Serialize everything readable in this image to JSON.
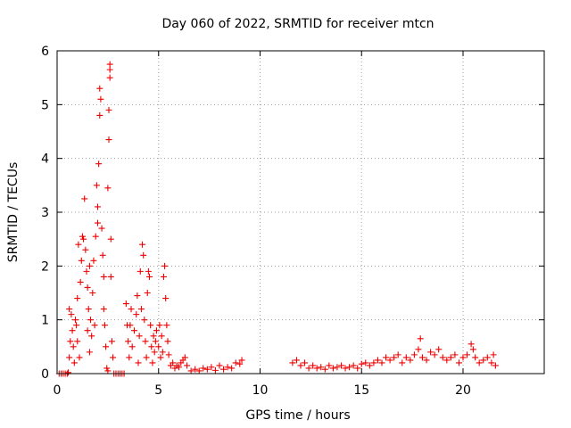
{
  "chart_data": {
    "type": "scatter",
    "title": "Day 060 of 2022, SRMTID for receiver mtcn",
    "xlabel": "GPS time / hours",
    "ylabel": "SRMTID / TECUs",
    "xlim": [
      0,
      24
    ],
    "ylim": [
      0,
      6
    ],
    "xticks": [
      0,
      5,
      10,
      15,
      20
    ],
    "yticks": [
      0,
      1,
      2,
      3,
      4,
      5,
      6
    ],
    "xtick_labels": [
      "0",
      "5",
      "10",
      "15",
      "20"
    ],
    "ytick_labels": [
      "0",
      "1",
      "2",
      "3",
      "4",
      "5",
      "6"
    ],
    "grid": true,
    "marker": "+",
    "color": "#ee0000",
    "series": [
      {
        "name": "SRMTID",
        "points": [
          [
            0.1,
            0.0
          ],
          [
            0.2,
            0.0
          ],
          [
            0.3,
            0.0
          ],
          [
            0.4,
            0.0
          ],
          [
            0.5,
            0.0
          ],
          [
            0.55,
            0.02
          ],
          [
            0.6,
            0.3
          ],
          [
            0.65,
            0.6
          ],
          [
            0.6,
            1.2
          ],
          [
            0.7,
            1.1
          ],
          [
            0.75,
            0.8
          ],
          [
            0.8,
            0.5
          ],
          [
            0.85,
            0.2
          ],
          [
            0.9,
            1.0
          ],
          [
            0.95,
            0.9
          ],
          [
            1.0,
            0.6
          ],
          [
            1.0,
            1.4
          ],
          [
            1.05,
            2.4
          ],
          [
            1.1,
            0.3
          ],
          [
            1.15,
            1.7
          ],
          [
            1.2,
            2.1
          ],
          [
            1.25,
            2.55
          ],
          [
            1.3,
            2.5
          ],
          [
            1.35,
            3.25
          ],
          [
            1.4,
            2.3
          ],
          [
            1.45,
            1.9
          ],
          [
            1.5,
            1.6
          ],
          [
            1.5,
            0.8
          ],
          [
            1.55,
            1.2
          ],
          [
            1.6,
            0.4
          ],
          [
            1.6,
            2.0
          ],
          [
            1.65,
            1.0
          ],
          [
            1.7,
            0.7
          ],
          [
            1.75,
            1.5
          ],
          [
            1.8,
            2.1
          ],
          [
            1.85,
            0.9
          ],
          [
            1.9,
            2.55
          ],
          [
            1.95,
            3.5
          ],
          [
            2.0,
            2.8
          ],
          [
            2.0,
            3.1
          ],
          [
            2.05,
            3.9
          ],
          [
            2.1,
            4.8
          ],
          [
            2.1,
            5.3
          ],
          [
            2.15,
            5.1
          ],
          [
            2.2,
            2.7
          ],
          [
            2.25,
            2.2
          ],
          [
            2.3,
            1.8
          ],
          [
            2.3,
            1.2
          ],
          [
            2.35,
            0.9
          ],
          [
            2.4,
            0.5
          ],
          [
            2.45,
            0.1
          ],
          [
            2.5,
            0.05
          ],
          [
            2.5,
            3.45
          ],
          [
            2.55,
            4.35
          ],
          [
            2.55,
            4.9
          ],
          [
            2.6,
            5.5
          ],
          [
            2.6,
            5.65
          ],
          [
            2.6,
            5.75
          ],
          [
            2.65,
            2.5
          ],
          [
            2.65,
            1.8
          ],
          [
            2.7,
            0.6
          ],
          [
            2.75,
            0.3
          ],
          [
            2.8,
            0.0
          ],
          [
            2.9,
            0.0
          ],
          [
            3.0,
            0.0
          ],
          [
            3.1,
            0.0
          ],
          [
            3.2,
            0.0
          ],
          [
            3.3,
            0.0
          ],
          [
            3.4,
            1.3
          ],
          [
            3.45,
            0.9
          ],
          [
            3.5,
            0.6
          ],
          [
            3.55,
            0.3
          ],
          [
            3.6,
            0.9
          ],
          [
            3.65,
            1.2
          ],
          [
            3.7,
            0.5
          ],
          [
            3.8,
            0.8
          ],
          [
            3.9,
            1.1
          ],
          [
            3.95,
            1.45
          ],
          [
            4.0,
            0.2
          ],
          [
            4.05,
            0.7
          ],
          [
            4.1,
            1.9
          ],
          [
            4.15,
            1.2
          ],
          [
            4.2,
            2.4
          ],
          [
            4.25,
            2.2
          ],
          [
            4.3,
            1.0
          ],
          [
            4.35,
            0.6
          ],
          [
            4.4,
            0.3
          ],
          [
            4.45,
            1.5
          ],
          [
            4.5,
            1.9
          ],
          [
            4.55,
            1.8
          ],
          [
            4.6,
            0.9
          ],
          [
            4.65,
            0.5
          ],
          [
            4.7,
            0.2
          ],
          [
            4.75,
            0.7
          ],
          [
            4.8,
            0.4
          ],
          [
            4.85,
            0.6
          ],
          [
            4.9,
            0.8
          ],
          [
            5.0,
            0.5
          ],
          [
            5.05,
            0.9
          ],
          [
            5.1,
            0.3
          ],
          [
            5.15,
            0.7
          ],
          [
            5.2,
            0.4
          ],
          [
            5.25,
            1.8
          ],
          [
            5.3,
            2.0
          ],
          [
            5.35,
            1.4
          ],
          [
            5.4,
            0.9
          ],
          [
            5.45,
            0.6
          ],
          [
            5.5,
            0.35
          ],
          [
            5.6,
            0.15
          ],
          [
            5.7,
            0.2
          ],
          [
            5.8,
            0.1
          ],
          [
            5.9,
            0.15
          ],
          [
            6.0,
            0.12
          ],
          [
            6.1,
            0.2
          ],
          [
            6.2,
            0.25
          ],
          [
            6.3,
            0.3
          ],
          [
            6.4,
            0.15
          ],
          [
            6.6,
            0.05
          ],
          [
            6.8,
            0.08
          ],
          [
            7.0,
            0.05
          ],
          [
            7.2,
            0.1
          ],
          [
            7.4,
            0.08
          ],
          [
            7.6,
            0.12
          ],
          [
            7.8,
            0.06
          ],
          [
            8.0,
            0.15
          ],
          [
            8.2,
            0.08
          ],
          [
            8.4,
            0.12
          ],
          [
            8.6,
            0.1
          ],
          [
            8.8,
            0.2
          ],
          [
            9.0,
            0.18
          ],
          [
            9.1,
            0.25
          ],
          [
            11.6,
            0.2
          ],
          [
            11.8,
            0.25
          ],
          [
            12.0,
            0.15
          ],
          [
            12.2,
            0.2
          ],
          [
            12.4,
            0.1
          ],
          [
            12.6,
            0.15
          ],
          [
            12.8,
            0.1
          ],
          [
            13.0,
            0.12
          ],
          [
            13.2,
            0.08
          ],
          [
            13.4,
            0.15
          ],
          [
            13.6,
            0.1
          ],
          [
            13.8,
            0.12
          ],
          [
            14.0,
            0.15
          ],
          [
            14.2,
            0.1
          ],
          [
            14.4,
            0.12
          ],
          [
            14.6,
            0.15
          ],
          [
            14.8,
            0.1
          ],
          [
            15.0,
            0.18
          ],
          [
            15.2,
            0.2
          ],
          [
            15.4,
            0.15
          ],
          [
            15.6,
            0.2
          ],
          [
            15.8,
            0.25
          ],
          [
            16.0,
            0.2
          ],
          [
            16.2,
            0.3
          ],
          [
            16.4,
            0.25
          ],
          [
            16.6,
            0.3
          ],
          [
            16.8,
            0.35
          ],
          [
            17.0,
            0.2
          ],
          [
            17.2,
            0.3
          ],
          [
            17.4,
            0.25
          ],
          [
            17.6,
            0.35
          ],
          [
            17.8,
            0.45
          ],
          [
            17.9,
            0.65
          ],
          [
            18.0,
            0.3
          ],
          [
            18.2,
            0.25
          ],
          [
            18.4,
            0.4
          ],
          [
            18.6,
            0.35
          ],
          [
            18.8,
            0.45
          ],
          [
            19.0,
            0.3
          ],
          [
            19.2,
            0.25
          ],
          [
            19.4,
            0.3
          ],
          [
            19.6,
            0.35
          ],
          [
            19.8,
            0.2
          ],
          [
            20.0,
            0.3
          ],
          [
            20.2,
            0.35
          ],
          [
            20.4,
            0.55
          ],
          [
            20.5,
            0.45
          ],
          [
            20.6,
            0.3
          ],
          [
            20.8,
            0.2
          ],
          [
            21.0,
            0.25
          ],
          [
            21.2,
            0.3
          ],
          [
            21.4,
            0.2
          ],
          [
            21.5,
            0.35
          ],
          [
            21.6,
            0.15
          ]
        ]
      }
    ]
  }
}
